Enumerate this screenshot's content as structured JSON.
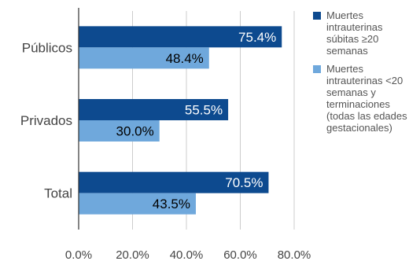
{
  "colors": {
    "series1": "#0d4a8f",
    "series2": "#6fa8dc",
    "grid": "#cccccc",
    "axis": "#333333",
    "label_on_dark": "#ffffff",
    "label_on_light": "#000000"
  },
  "legend": {
    "placement": "right",
    "items": [
      {
        "label": "Muertes intrauterinas súbitas ≥20 semanas"
      },
      {
        "label": "Muertes intrauterinas <20 semanas y terminaciones (todas las edades gestacionales)"
      }
    ]
  },
  "chart_data": {
    "type": "bar",
    "orientation": "horizontal",
    "title": "",
    "xlabel": "",
    "ylabel": "",
    "categories": [
      "Públicos",
      "Privados",
      "Total"
    ],
    "series": [
      {
        "name": "Muertes intrauterinas súbitas ≥20 semanas",
        "values": [
          75.4,
          55.5,
          70.5
        ],
        "labels": [
          "75.4%",
          "55.5%",
          "70.5%"
        ]
      },
      {
        "name": "Muertes intrauterinas <20 semanas y terminaciones (todas las edades gestacionales)",
        "values": [
          48.4,
          30.0,
          43.5
        ],
        "labels": [
          "48.4%",
          "30.0%",
          "43.5%"
        ]
      }
    ],
    "xlim": [
      0,
      80
    ],
    "xticks": [
      0,
      20,
      40,
      60,
      80
    ],
    "xtick_labels": [
      "0.0%",
      "20.0%",
      "40.0%",
      "60.0%",
      "80.0%"
    ],
    "grid": true,
    "legend_position": "right"
  }
}
